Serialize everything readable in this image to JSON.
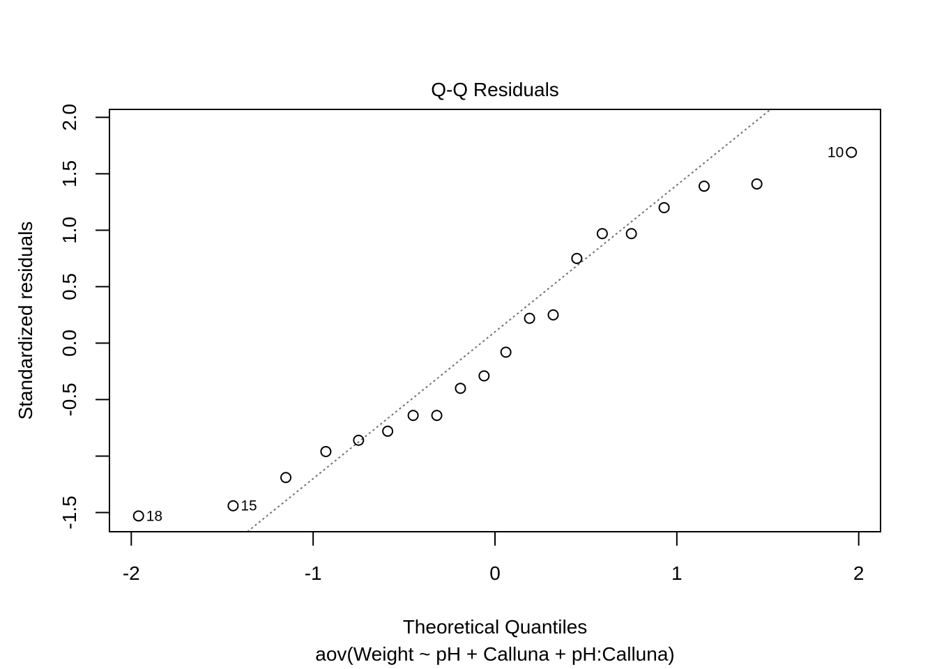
{
  "chart_data": {
    "type": "scatter",
    "title": "Q-Q Residuals",
    "xlabel": "Theoretical Quantiles",
    "ylabel": "Standardized residuals",
    "subtitle": "aov(Weight ~ pH + Calluna + pH:Calluna)",
    "xlim": [
      -2.12,
      2.12
    ],
    "ylim": [
      -1.67,
      2.07
    ],
    "x_ticks": [
      {
        "value": -2,
        "label": "-2"
      },
      {
        "value": -1,
        "label": "-1"
      },
      {
        "value": 0,
        "label": "0"
      },
      {
        "value": 1,
        "label": "1"
      },
      {
        "value": 2,
        "label": "2"
      }
    ],
    "y_ticks": [
      {
        "value": -1.5,
        "label": "-1.5"
      },
      {
        "value": -1.0,
        "label": ""
      },
      {
        "value": -0.5,
        "label": "-0.5"
      },
      {
        "value": 0.0,
        "label": "0.0"
      },
      {
        "value": 0.5,
        "label": "0.5"
      },
      {
        "value": 1.0,
        "label": "1.0"
      },
      {
        "value": 1.5,
        "label": "1.5"
      },
      {
        "value": 2.0,
        "label": "2.0"
      }
    ],
    "points": [
      {
        "x": -1.96,
        "y": -1.53,
        "label": "18"
      },
      {
        "x": -1.44,
        "y": -1.44,
        "label": "15"
      },
      {
        "x": -1.15,
        "y": -1.19,
        "label": ""
      },
      {
        "x": -0.93,
        "y": -0.96,
        "label": ""
      },
      {
        "x": -0.75,
        "y": -0.86,
        "label": ""
      },
      {
        "x": -0.59,
        "y": -0.78,
        "label": ""
      },
      {
        "x": -0.45,
        "y": -0.64,
        "label": ""
      },
      {
        "x": -0.32,
        "y": -0.64,
        "label": ""
      },
      {
        "x": -0.19,
        "y": -0.4,
        "label": ""
      },
      {
        "x": -0.06,
        "y": -0.29,
        "label": ""
      },
      {
        "x": 0.06,
        "y": -0.08,
        "label": ""
      },
      {
        "x": 0.19,
        "y": 0.22,
        "label": ""
      },
      {
        "x": 0.32,
        "y": 0.25,
        "label": ""
      },
      {
        "x": 0.45,
        "y": 0.75,
        "label": ""
      },
      {
        "x": 0.59,
        "y": 0.97,
        "label": ""
      },
      {
        "x": 0.75,
        "y": 0.97,
        "label": ""
      },
      {
        "x": 0.93,
        "y": 1.2,
        "label": ""
      },
      {
        "x": 1.15,
        "y": 1.39,
        "label": ""
      },
      {
        "x": 1.44,
        "y": 1.41,
        "label": ""
      },
      {
        "x": 1.96,
        "y": 1.69,
        "label": "10"
      }
    ],
    "reference_line": {
      "intercept": 0.1,
      "slope": 1.3,
      "style": "dotted",
      "color": "#707070"
    }
  }
}
